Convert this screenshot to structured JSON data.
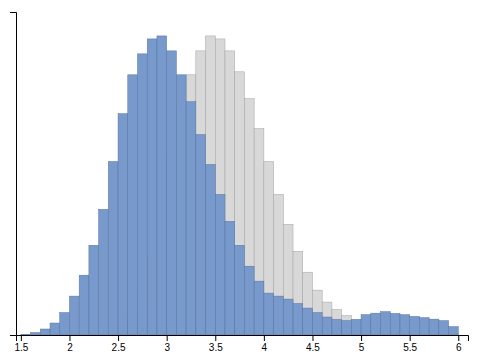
{
  "chart_data": {
    "type": "histogram",
    "series": [
      {
        "color": "#d8d8d8",
        "bins": [
          2.4,
          2.5,
          2.6,
          2.7,
          2.8,
          2.9,
          3.0,
          3.1,
          3.2,
          3.3,
          3.4,
          3.5,
          3.6,
          3.7,
          3.8,
          3.9,
          4.0,
          4.1,
          4.2,
          4.3,
          4.4,
          4.5,
          4.6,
          4.7,
          4.8,
          4.9,
          5.0,
          5.1,
          5.2,
          5.3,
          5.4,
          5.5,
          5.6,
          5.7,
          5.8,
          5.9,
          6.0
        ],
        "values": [
          0.005,
          0.02,
          0.06,
          0.14,
          0.26,
          0.42,
          0.6,
          0.76,
          0.87,
          0.95,
          1.0,
          0.99,
          0.95,
          0.88,
          0.79,
          0.69,
          0.58,
          0.47,
          0.37,
          0.28,
          0.21,
          0.15,
          0.11,
          0.085,
          0.065,
          0.05,
          0.038,
          0.03,
          0.025,
          0.02,
          0.015,
          0.013,
          0.011,
          0.009,
          0.006,
          0.003
        ]
      },
      {
        "color": "#7799cc",
        "bins": [
          1.5,
          1.6,
          1.7,
          1.8,
          1.9,
          2.0,
          2.1,
          2.2,
          2.3,
          2.4,
          2.5,
          2.6,
          2.7,
          2.8,
          2.9,
          3.0,
          3.1,
          3.2,
          3.3,
          3.4,
          3.5,
          3.6,
          3.7,
          3.8,
          3.9,
          4.0,
          4.1,
          4.2,
          4.3,
          4.4,
          4.5,
          4.6,
          4.7,
          4.8,
          4.9,
          5.0,
          5.1,
          5.2,
          5.3,
          5.4,
          5.5,
          5.6,
          5.7,
          5.8,
          5.9,
          6.0
        ],
        "values": [
          0.002,
          0.008,
          0.02,
          0.04,
          0.075,
          0.13,
          0.2,
          0.3,
          0.42,
          0.58,
          0.74,
          0.87,
          0.94,
          0.99,
          1.0,
          0.95,
          0.87,
          0.78,
          0.67,
          0.57,
          0.47,
          0.38,
          0.3,
          0.23,
          0.18,
          0.14,
          0.13,
          0.12,
          0.105,
          0.09,
          0.075,
          0.06,
          0.052,
          0.048,
          0.052,
          0.068,
          0.073,
          0.078,
          0.072,
          0.068,
          0.062,
          0.058,
          0.053,
          0.048,
          0.028
        ]
      }
    ],
    "xlim": [
      1.45,
      6.1
    ],
    "xticks": [
      1.5,
      2,
      2.5,
      3,
      3.5,
      4,
      4.5,
      5,
      5.5,
      6
    ],
    "ylim": [
      0,
      1.08
    ],
    "tick_labels": "x"
  }
}
